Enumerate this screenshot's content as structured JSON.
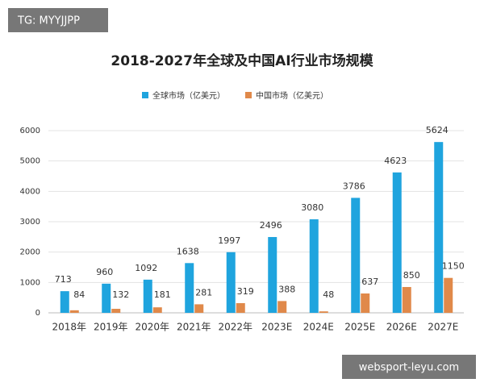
{
  "overlay_tag": "TG: MYYJJPP",
  "watermark": "websport-leyu.com",
  "chart_data": {
    "type": "bar",
    "title": "2018-2027年全球及中国AI行业市场规模",
    "categories": [
      "2018年",
      "2019年",
      "2020年",
      "2021年",
      "2022年",
      "2023E",
      "2024E",
      "2025E",
      "2026E",
      "2027E"
    ],
    "series": [
      {
        "name": "全球市场（亿美元）",
        "color": "#1fa4de",
        "values": [
          713,
          960,
          1092,
          1638,
          1997,
          2496,
          3080,
          3786,
          4623,
          5624
        ]
      },
      {
        "name": "中国市场（亿美元）",
        "color": "#e0894a",
        "values": [
          84,
          132,
          181,
          281,
          319,
          388,
          48,
          637,
          850,
          1150
        ]
      }
    ],
    "ylim": [
      0,
      6000
    ],
    "yticks": [
      0,
      1000,
      2000,
      3000,
      4000,
      5000,
      6000
    ],
    "grid": true,
    "legend": "top"
  }
}
